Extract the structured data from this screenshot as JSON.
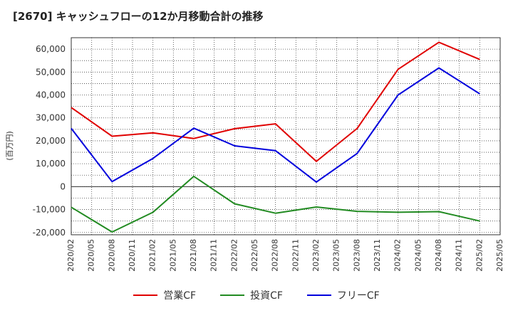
{
  "chart_data": {
    "type": "line",
    "title": "[2670]  キャッシュフローの12か月移動合計の推移",
    "ylabel": "(百万円)",
    "xlabel": "",
    "ylim": [
      -21000,
      65000
    ],
    "yticks": [
      -20000,
      -10000,
      0,
      10000,
      20000,
      30000,
      40000,
      50000,
      60000
    ],
    "ytick_labels": [
      "-20,000",
      "-10,000",
      "0",
      "10,000",
      "20,000",
      "30,000",
      "40,000",
      "50,000",
      "60,000"
    ],
    "categories": [
      "2020/02",
      "2020/05",
      "2020/08",
      "2020/11",
      "2021/02",
      "2021/05",
      "2021/08",
      "2021/11",
      "2022/02",
      "2022/05",
      "2022/08",
      "2022/11",
      "2023/02",
      "2023/05",
      "2023/08",
      "2023/11",
      "2024/02",
      "2024/05",
      "2024/08",
      "2024/11",
      "2025/02",
      "2025/05"
    ],
    "grid": true,
    "legend_position": "bottom",
    "series": [
      {
        "name": "営業CF",
        "color": "#e00000",
        "values": [
          34500,
          null,
          22000,
          null,
          23500,
          null,
          21000,
          null,
          25300,
          null,
          27400,
          null,
          11000,
          null,
          25400,
          null,
          51200,
          null,
          63000,
          null,
          55500,
          null
        ]
      },
      {
        "name": "投資CF",
        "color": "#228B22",
        "values": [
          -9000,
          null,
          -19800,
          null,
          -11200,
          null,
          4500,
          null,
          -7500,
          null,
          -11600,
          null,
          -8900,
          null,
          -10800,
          null,
          -11200,
          null,
          -10900,
          null,
          -15000,
          null
        ]
      },
      {
        "name": "フリーCF",
        "color": "#0000dd",
        "values": [
          25400,
          null,
          2200,
          null,
          12300,
          null,
          25500,
          null,
          17800,
          null,
          15700,
          null,
          2000,
          null,
          14500,
          null,
          40000,
          null,
          51800,
          null,
          40500,
          null
        ]
      }
    ]
  }
}
